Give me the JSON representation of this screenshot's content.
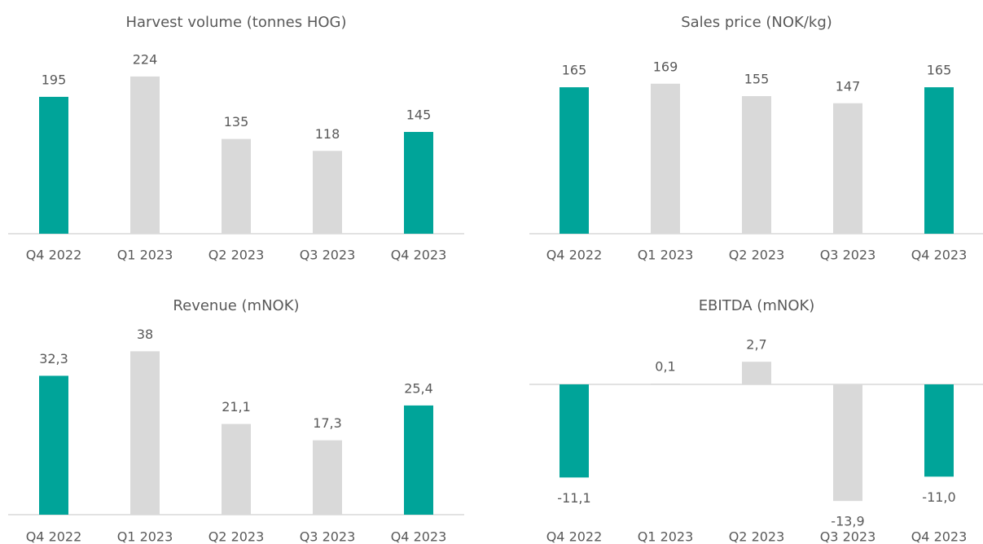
{
  "chart_data": [
    {
      "type": "bar",
      "title": "Harvest volume (tonnes HOG)",
      "categories": [
        "Q4 2022",
        "Q1 2023",
        "Q2 2023",
        "Q3 2023",
        "Q4 2023"
      ],
      "values": [
        195,
        224,
        135,
        118,
        145
      ],
      "colors": [
        "#00a499",
        "#d9d9d9",
        "#d9d9d9",
        "#d9d9d9",
        "#00a499"
      ]
    },
    {
      "type": "bar",
      "title": "Sales price (NOK/kg)",
      "categories": [
        "Q4 2022",
        "Q1 2023",
        "Q2 2023",
        "Q3 2023",
        "Q4 2023"
      ],
      "values": [
        165,
        169,
        155,
        147,
        165
      ],
      "colors": [
        "#00a499",
        "#d9d9d9",
        "#d9d9d9",
        "#d9d9d9",
        "#00a499"
      ]
    },
    {
      "type": "bar",
      "title": "Revenue (mNOK)",
      "categories": [
        "Q4 2022",
        "Q1 2023",
        "Q2 2023",
        "Q3 2023",
        "Q4 2023"
      ],
      "values": [
        32.3,
        38,
        21.1,
        17.3,
        25.4
      ],
      "value_labels": [
        "32,3",
        "38",
        "21,1",
        "17,3",
        "25,4"
      ],
      "colors": [
        "#00a499",
        "#d9d9d9",
        "#d9d9d9",
        "#d9d9d9",
        "#00a499"
      ]
    },
    {
      "type": "bar",
      "title": "EBITDA (mNOK)",
      "categories": [
        "Q4 2022",
        "Q1 2023",
        "Q2 2023",
        "Q3 2023",
        "Q4 2023"
      ],
      "values": [
        -11.1,
        0.1,
        2.7,
        -13.9,
        -11.0
      ],
      "value_labels": [
        "-11,1",
        "0,1",
        "2,7",
        "-13,9",
        "-11,0"
      ],
      "colors": [
        "#00a499",
        "#d9d9d9",
        "#d9d9d9",
        "#d9d9d9",
        "#00a499"
      ]
    }
  ]
}
